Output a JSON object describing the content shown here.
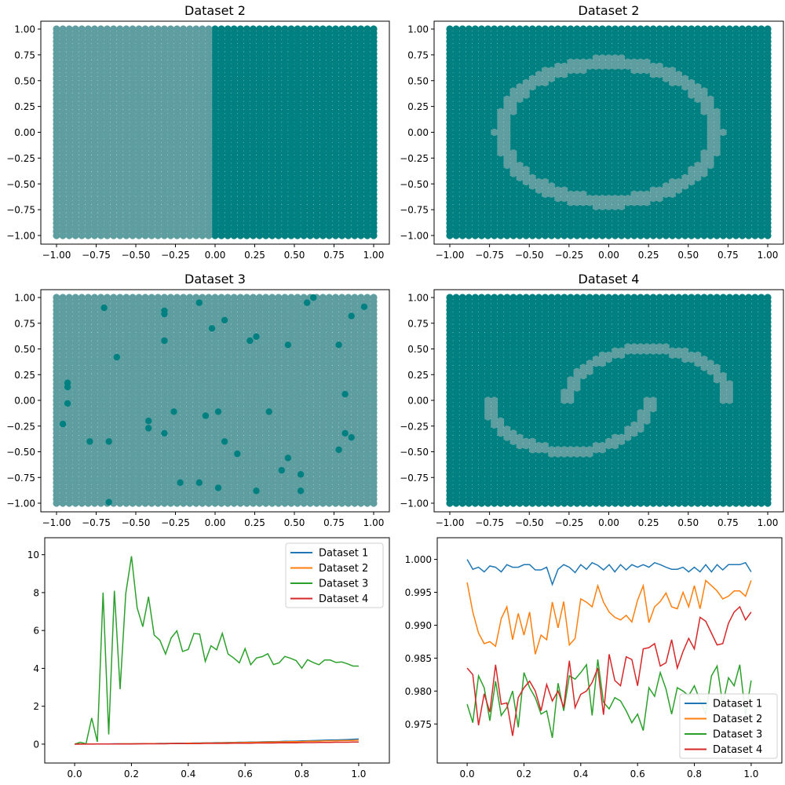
{
  "colors": {
    "region_dark": "#008080",
    "region_light": "#5f9ea0",
    "series": [
      "#1f77b4",
      "#ff7f0e",
      "#2ca02c",
      "#d62728"
    ]
  },
  "chart_data": [
    {
      "type": "scatter",
      "title": "Dataset 2",
      "xlim": [
        -1,
        1
      ],
      "ylim": [
        -1,
        1
      ],
      "grid": false,
      "pattern": "halfplane",
      "description_of_regions": {
        "x_lt_0": "light",
        "x_ge_0": "dark"
      },
      "xticks": [
        "−1.00",
        "−0.75",
        "−0.50",
        "−0.25",
        "0.00",
        "0.25",
        "0.50",
        "0.75",
        "1.00"
      ],
      "yticks": [
        "−1.00",
        "−0.75",
        "−0.50",
        "−0.25",
        "0.00",
        "0.25",
        "0.50",
        "0.75",
        "1.00"
      ]
    },
    {
      "type": "scatter",
      "title": "Dataset 2",
      "xlim": [
        -1,
        1
      ],
      "ylim": [
        -1,
        1
      ],
      "grid": false,
      "pattern": "ring",
      "ring": {
        "outer_rx": 0.72,
        "outer_ry": 0.73,
        "inner_rx": 0.63,
        "inner_ry": 0.62
      },
      "xticks": [
        "−1.00",
        "−0.75",
        "−0.50",
        "−0.25",
        "0.00",
        "0.25",
        "0.50",
        "0.75",
        "1.00"
      ],
      "yticks": [
        "−1.00",
        "−0.75",
        "−0.50",
        "−0.25",
        "0.00",
        "0.25",
        "0.50",
        "0.75",
        "1.00"
      ]
    },
    {
      "type": "scatter",
      "title": "Dataset 3",
      "xlim": [
        -1,
        1
      ],
      "ylim": [
        -1,
        1
      ],
      "grid": false,
      "pattern": "xor_spots",
      "spots": [
        [
          -0.93,
          0.17
        ],
        [
          -0.93,
          0.13
        ],
        [
          -0.93,
          -0.03
        ],
        [
          -0.96,
          -0.23
        ],
        [
          -0.79,
          -0.4
        ],
        [
          -0.67,
          -0.4
        ],
        [
          -0.7,
          0.9
        ],
        [
          -0.62,
          0.42
        ],
        [
          -0.67,
          -0.99
        ],
        [
          -0.32,
          0.87
        ],
        [
          -0.32,
          0.84
        ],
        [
          -0.32,
          0.58
        ],
        [
          -0.32,
          -0.32
        ],
        [
          -0.42,
          -0.2
        ],
        [
          -0.42,
          -0.27
        ],
        [
          -0.26,
          -0.11
        ],
        [
          -0.22,
          -0.8
        ],
        [
          -0.1,
          0.95
        ],
        [
          -0.1,
          -0.8
        ],
        [
          -0.06,
          -0.15
        ],
        [
          -0.02,
          0.7
        ],
        [
          0.02,
          -0.11
        ],
        [
          0.06,
          0.78
        ],
        [
          0.06,
          -0.4
        ],
        [
          0.02,
          -0.85
        ],
        [
          0.14,
          -0.52
        ],
        [
          0.22,
          0.58
        ],
        [
          0.26,
          0.62
        ],
        [
          0.26,
          -0.88
        ],
        [
          0.34,
          -0.11
        ],
        [
          0.42,
          -0.68
        ],
        [
          0.46,
          0.54
        ],
        [
          0.46,
          -0.56
        ],
        [
          0.54,
          -0.72
        ],
        [
          0.54,
          -0.88
        ],
        [
          0.58,
          0.95
        ],
        [
          0.62,
          1.0
        ],
        [
          0.78,
          0.54
        ],
        [
          0.78,
          -0.48
        ],
        [
          0.82,
          0.06
        ],
        [
          0.82,
          -0.32
        ],
        [
          0.86,
          0.82
        ],
        [
          0.86,
          -0.36
        ],
        [
          0.94,
          0.91
        ]
      ],
      "xticks": [
        "−1.00",
        "−0.75",
        "−0.50",
        "−0.25",
        "0.00",
        "0.25",
        "0.50",
        "0.75",
        "1.00"
      ],
      "yticks": [
        "−1.00",
        "−0.75",
        "−0.50",
        "−0.25",
        "0.00",
        "0.25",
        "0.50",
        "0.75",
        "1.00"
      ]
    },
    {
      "type": "scatter",
      "title": "Dataset 4",
      "xlim": [
        -1,
        1
      ],
      "ylim": [
        -1,
        1
      ],
      "grid": false,
      "pattern": "moons",
      "moons": {
        "r_outer": 0.54,
        "r_inner": 0.46,
        "upper_center": [
          0.25,
          0.0
        ],
        "lower_center": [
          -0.25,
          0.0
        ]
      },
      "xticks": [
        "−1.00",
        "−0.75",
        "−0.50",
        "−0.25",
        "0.00",
        "0.25",
        "0.50",
        "0.75",
        "1.00"
      ],
      "yticks": [
        "−1.00",
        "−0.75",
        "−0.50",
        "−0.25",
        "0.00",
        "0.25",
        "0.50",
        "0.75",
        "1.00"
      ]
    },
    {
      "type": "line",
      "title": "",
      "xlim": [
        -0.05,
        1.05
      ],
      "ylim": [
        -0.5,
        10.4
      ],
      "grid": false,
      "legend_position": "top-right",
      "xticks": [
        "0.0",
        "0.2",
        "0.4",
        "0.6",
        "0.8",
        "1.0"
      ],
      "yticks": [
        "0",
        "2",
        "4",
        "6",
        "8",
        "10"
      ],
      "x": [
        0,
        0.02,
        0.04,
        0.06,
        0.08,
        0.1,
        0.12,
        0.14,
        0.16,
        0.18,
        0.2,
        0.22,
        0.24,
        0.26,
        0.28,
        0.3,
        0.32,
        0.34,
        0.36,
        0.38,
        0.4,
        0.42,
        0.44,
        0.46,
        0.48,
        0.5,
        0.52,
        0.54,
        0.56,
        0.58,
        0.6,
        0.62,
        0.64,
        0.66,
        0.68,
        0.7,
        0.72,
        0.74,
        0.76,
        0.78,
        0.8,
        0.82,
        0.84,
        0.86,
        0.88,
        0.9,
        0.92,
        0.94,
        0.96,
        0.98,
        1.0
      ],
      "series": [
        {
          "name": "Dataset 1",
          "values": [
            0,
            0.01,
            0.01,
            0.01,
            0.01,
            0.01,
            0.01,
            0.02,
            0.02,
            0.02,
            0.02,
            0.02,
            0.03,
            0.03,
            0.03,
            0.04,
            0.04,
            0.04,
            0.05,
            0.05,
            0.05,
            0.06,
            0.06,
            0.07,
            0.07,
            0.08,
            0.08,
            0.09,
            0.09,
            0.1,
            0.1,
            0.11,
            0.11,
            0.12,
            0.13,
            0.13,
            0.14,
            0.15,
            0.15,
            0.16,
            0.17,
            0.18,
            0.19,
            0.2,
            0.21,
            0.22,
            0.22,
            0.23,
            0.24,
            0.26,
            0.27
          ]
        },
        {
          "name": "Dataset 2",
          "values": [
            0,
            0,
            0.01,
            0.01,
            0.01,
            0.01,
            0.01,
            0.01,
            0.02,
            0.02,
            0.02,
            0.02,
            0.02,
            0.03,
            0.03,
            0.03,
            0.03,
            0.04,
            0.04,
            0.04,
            0.05,
            0.05,
            0.05,
            0.06,
            0.06,
            0.06,
            0.07,
            0.07,
            0.08,
            0.08,
            0.09,
            0.09,
            0.1,
            0.1,
            0.11,
            0.11,
            0.12,
            0.12,
            0.13,
            0.13,
            0.14,
            0.15,
            0.15,
            0.16,
            0.17,
            0.17,
            0.18,
            0.19,
            0.19,
            0.2,
            0.21
          ]
        },
        {
          "name": "Dataset 3",
          "values": [
            0,
            0.1,
            0.02,
            1.38,
            0.12,
            8.0,
            0.51,
            8.1,
            2.9,
            7.95,
            9.92,
            7.2,
            6.2,
            7.78,
            5.76,
            5.49,
            4.76,
            5.61,
            5.98,
            4.89,
            5.0,
            5.84,
            5.81,
            4.37,
            5.19,
            4.98,
            5.85,
            4.76,
            4.55,
            4.29,
            5.04,
            4.19,
            4.55,
            4.62,
            4.77,
            4.2,
            4.29,
            4.63,
            4.53,
            4.41,
            4.01,
            4.46,
            4.31,
            4.19,
            4.44,
            4.44,
            4.31,
            4.34,
            4.24,
            4.12,
            4.12
          ]
        },
        {
          "name": "Dataset 4",
          "values": [
            0,
            0,
            0,
            0,
            0.01,
            0.01,
            0.01,
            0.01,
            0.01,
            0.01,
            0.01,
            0.02,
            0.02,
            0.02,
            0.02,
            0.02,
            0.02,
            0.03,
            0.03,
            0.03,
            0.03,
            0.03,
            0.03,
            0.04,
            0.04,
            0.04,
            0.04,
            0.04,
            0.05,
            0.05,
            0.05,
            0.05,
            0.06,
            0.06,
            0.06,
            0.06,
            0.07,
            0.07,
            0.07,
            0.07,
            0.08,
            0.08,
            0.08,
            0.09,
            0.09,
            0.09,
            0.1,
            0.1,
            0.1,
            0.11,
            0.11
          ]
        }
      ]
    },
    {
      "type": "line",
      "title": "",
      "xlim": [
        -0.05,
        1.05
      ],
      "ylim": [
        0.9705,
        1.0015
      ],
      "grid": false,
      "legend_position": "bottom-right",
      "xticks": [
        "0.0",
        "0.2",
        "0.4",
        "0.6",
        "0.8",
        "1.0"
      ],
      "yticks": [
        "0.975",
        "0.980",
        "0.985",
        "0.990",
        "0.995",
        "1.000"
      ],
      "x": [
        0,
        0.02,
        0.04,
        0.06,
        0.08,
        0.1,
        0.12,
        0.14,
        0.16,
        0.18,
        0.2,
        0.22,
        0.24,
        0.26,
        0.28,
        0.3,
        0.32,
        0.34,
        0.36,
        0.38,
        0.4,
        0.42,
        0.44,
        0.46,
        0.48,
        0.5,
        0.52,
        0.54,
        0.56,
        0.58,
        0.6,
        0.62,
        0.64,
        0.66,
        0.68,
        0.7,
        0.72,
        0.74,
        0.76,
        0.78,
        0.8,
        0.82,
        0.84,
        0.86,
        0.88,
        0.9,
        0.92,
        0.94,
        0.96,
        0.98,
        1.0
      ],
      "series": [
        {
          "name": "Dataset 1",
          "values": [
            1.0,
            0.9985,
            0.9988,
            0.9981,
            0.999,
            0.9988,
            0.9981,
            0.9992,
            0.9988,
            0.9988,
            0.9992,
            0.9992,
            0.9984,
            0.9984,
            0.9988,
            0.9962,
            0.9985,
            0.9992,
            0.9988,
            0.998,
            0.9992,
            0.9985,
            0.9995,
            0.9991,
            0.9984,
            0.9992,
            0.9981,
            0.9992,
            0.9984,
            0.9992,
            0.9988,
            0.9992,
            0.9988,
            0.9995,
            0.9992,
            0.9988,
            0.9985,
            0.9985,
            0.9988,
            0.9981,
            0.9988,
            0.9981,
            0.9992,
            0.9981,
            0.9992,
            0.9984,
            0.9992,
            0.9992,
            0.9992,
            0.9995,
            0.9981
          ]
        },
        {
          "name": "Dataset 2",
          "values": [
            0.9965,
            0.992,
            0.9888,
            0.9872,
            0.9875,
            0.9868,
            0.991,
            0.9928,
            0.9878,
            0.9918,
            0.9885,
            0.992,
            0.9856,
            0.9885,
            0.9878,
            0.9935,
            0.9896,
            0.9936,
            0.987,
            0.988,
            0.994,
            0.9935,
            0.9928,
            0.996,
            0.9935,
            0.992,
            0.9912,
            0.9908,
            0.9915,
            0.9905,
            0.9938,
            0.996,
            0.9904,
            0.9928,
            0.9936,
            0.9949,
            0.9928,
            0.9925,
            0.995,
            0.9928,
            0.996,
            0.9925,
            0.9968,
            0.996,
            0.9952,
            0.994,
            0.9944,
            0.9952,
            0.9952,
            0.9944,
            0.9968
          ]
        },
        {
          "name": "Dataset 3",
          "values": [
            0.978,
            0.9752,
            0.9823,
            0.9805,
            0.9755,
            0.9815,
            0.9763,
            0.9775,
            0.98,
            0.9745,
            0.9828,
            0.9805,
            0.979,
            0.9765,
            0.977,
            0.9729,
            0.9812,
            0.977,
            0.9823,
            0.9818,
            0.9828,
            0.984,
            0.9763,
            0.9848,
            0.9783,
            0.9773,
            0.979,
            0.9785,
            0.977,
            0.9752,
            0.9765,
            0.974,
            0.9805,
            0.9792,
            0.9828,
            0.9803,
            0.9765,
            0.9805,
            0.98,
            0.9793,
            0.9808,
            0.9786,
            0.9765,
            0.9823,
            0.9838,
            0.978,
            0.982,
            0.9808,
            0.984,
            0.9763,
            0.9816
          ]
        },
        {
          "name": "Dataset 4",
          "values": [
            0.9835,
            0.9825,
            0.9748,
            0.9796,
            0.9768,
            0.984,
            0.978,
            0.9782,
            0.9732,
            0.979,
            0.9805,
            0.9815,
            0.98,
            0.977,
            0.981,
            0.9785,
            0.98,
            0.9775,
            0.9846,
            0.9775,
            0.9795,
            0.98,
            0.9813,
            0.9835,
            0.9764,
            0.9856,
            0.9816,
            0.9808,
            0.9852,
            0.9848,
            0.9808,
            0.9864,
            0.9866,
            0.9872,
            0.9838,
            0.9843,
            0.9878,
            0.9835,
            0.986,
            0.988,
            0.9864,
            0.9912,
            0.9906,
            0.9888,
            0.987,
            0.9872,
            0.9903,
            0.992,
            0.9928,
            0.9908,
            0.992
          ]
        }
      ]
    }
  ]
}
